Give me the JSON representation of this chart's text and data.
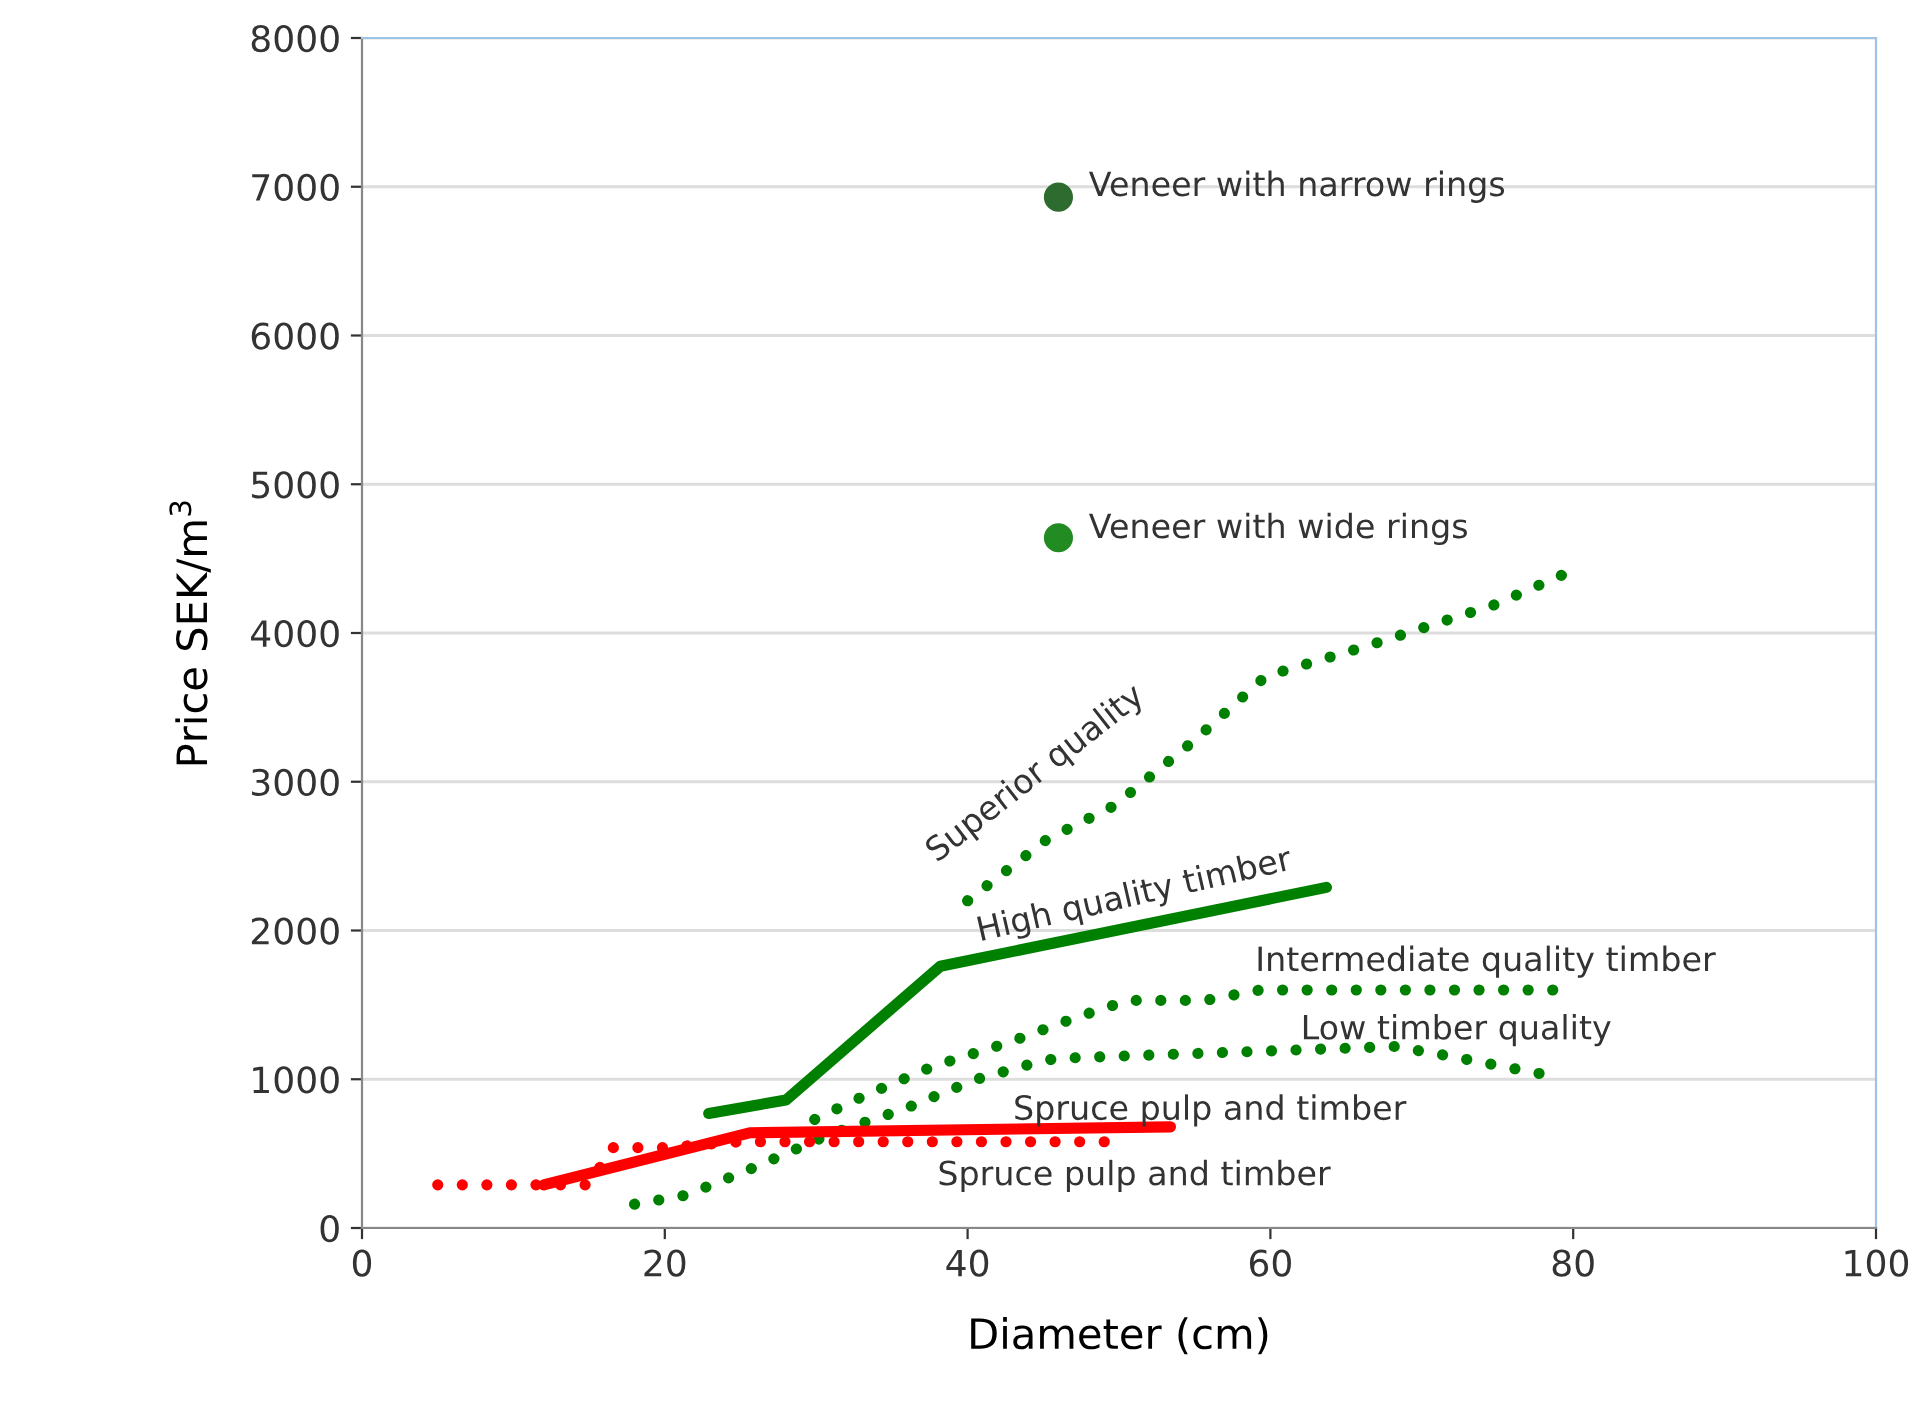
{
  "chart_data": {
    "type": "line",
    "xlabel": "Diameter (cm)",
    "ylabel": "Price SEK/m$^{3}$",
    "xlim": [
      0,
      100
    ],
    "xticks": [
      0,
      20,
      40,
      60,
      80,
      100
    ],
    "ylim": [
      0,
      8000
    ],
    "yticks": [
      0,
      1000,
      2000,
      3000,
      4000,
      5000,
      6000,
      7000,
      8000
    ],
    "grid": "y",
    "legend": false,
    "series": [
      {
        "name": "Veneer with narrow rings",
        "type": "scatter",
        "marker": "circle",
        "color": "#2e6b2e",
        "x": [
          46
        ],
        "values": [
          6930
        ]
      },
      {
        "name": "Veneer with wide rings",
        "type": "scatter",
        "marker": "circle",
        "color": "#228b22",
        "x": [
          46
        ],
        "values": [
          4640
        ]
      },
      {
        "name": "Superior quality",
        "line_style": "dotted",
        "color": "#008000",
        "x": [
          40,
          45.2,
          49.7,
          55,
          59.7,
          66.3,
          74.8,
          79.5
        ],
        "values": [
          2200,
          2610,
          2840,
          3280,
          3710,
          3910,
          4190,
          4400
        ]
      },
      {
        "name": "High quality timber",
        "line_style": "solid",
        "color": "#008000",
        "x": [
          22.9,
          28,
          38.2,
          63.7
        ],
        "values": [
          770,
          860,
          1760,
          2290
        ]
      },
      {
        "name": "Intermediate quality timber",
        "line_style": "dotted",
        "color": "#008000",
        "x": [
          29.9,
          33.2,
          37.8,
          42.5,
          47.3,
          50.6,
          55.7,
          59.3,
          78.7
        ],
        "values": [
          730,
          890,
          1090,
          1240,
          1420,
          1530,
          1530,
          1600,
          1600
        ]
      },
      {
        "name": "Low timber quality",
        "line_style": "dotted",
        "color": "#008000",
        "x": [
          18,
          21.4,
          26.2,
          30.9,
          35.8,
          40.6,
          44.1,
          45.8,
          68.2,
          71.6,
          78.7
        ],
        "values": [
          160,
          220,
          420,
          630,
          800,
          1000,
          1100,
          1140,
          1220,
          1160,
          1020
        ]
      },
      {
        "name": "Spruce pulp and timber",
        "line_style": "solid",
        "color": "#ff0000",
        "x": [
          12,
          25.6,
          53.4
        ],
        "values": [
          290,
          640,
          680
        ]
      },
      {
        "name": "Spruce pulp and timber",
        "line_style": "dotted",
        "color": "#ff0000",
        "x": [
          5,
          15,
          16.5,
          20,
          25,
          50
        ],
        "values": [
          290,
          290,
          540,
          540,
          580,
          580
        ]
      }
    ]
  }
}
